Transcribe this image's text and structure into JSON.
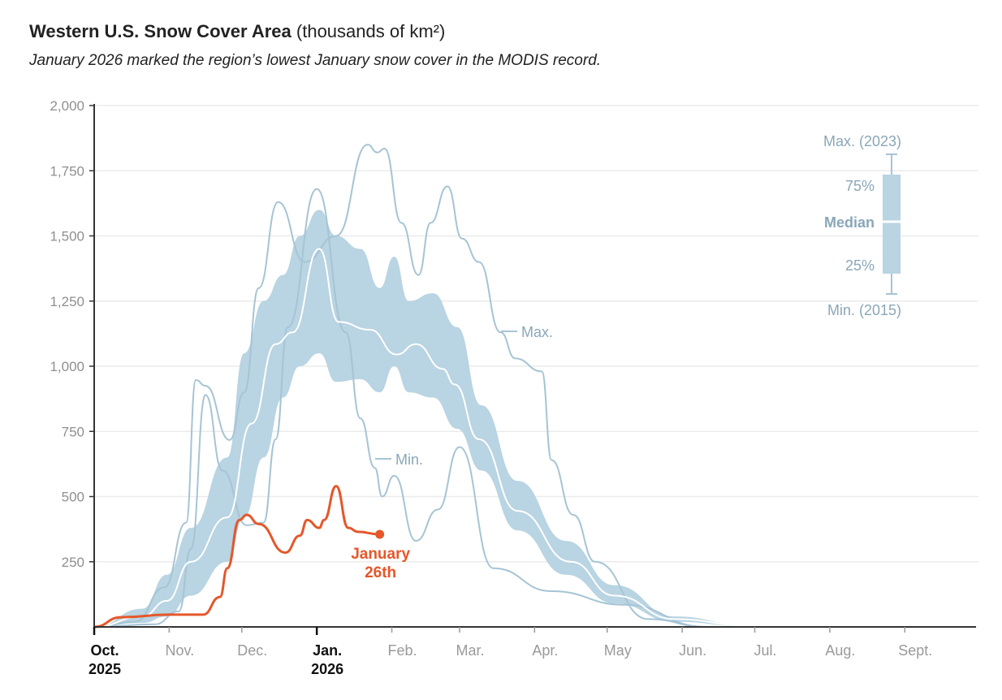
{
  "title": {
    "bold": "Western U.S. Snow Cover Area",
    "units": "(thousands of km²)"
  },
  "subtitle": "January 2026 marked the region’s lowest January snow cover in the MODIS record.",
  "colors": {
    "band": "#b9d4e2",
    "line": "#a6c4d4",
    "median": "#ffffff",
    "current": "#e5572a",
    "label": "#8aa7b8"
  },
  "chart_data": {
    "type": "area",
    "title": "Western U.S. Snow Cover Area (thousands of km²)",
    "xlabel": "",
    "ylabel": "",
    "x_unit": "days since Oct. 1",
    "ylim": [
      0,
      2000
    ],
    "xlim": [
      0,
      365
    ],
    "y_ticks": [
      250,
      500,
      750,
      "1,000",
      "1,250",
      "1,500",
      "1,750",
      "2,000"
    ],
    "y_tick_values": [
      250,
      500,
      750,
      1000,
      1250,
      1500,
      1750,
      2000
    ],
    "x_ticks": [
      {
        "day": 0,
        "label": "Oct.",
        "sub": "2025",
        "bold": true
      },
      {
        "day": 31,
        "label": "Nov."
      },
      {
        "day": 61,
        "label": "Dec."
      },
      {
        "day": 92,
        "label": "Jan.",
        "sub": "2026",
        "bold": true
      },
      {
        "day": 123,
        "label": "Feb."
      },
      {
        "day": 151,
        "label": "Mar."
      },
      {
        "day": 182,
        "label": "Apr."
      },
      {
        "day": 212,
        "label": "May"
      },
      {
        "day": 243,
        "label": "Jun."
      },
      {
        "day": 273,
        "label": "Jul."
      },
      {
        "day": 304,
        "label": "Aug."
      },
      {
        "day": 335,
        "label": "Sept."
      }
    ],
    "grid": true,
    "series": [
      {
        "name": "75th percentile",
        "points": [
          [
            0,
            0
          ],
          [
            20,
            70
          ],
          [
            30,
            200
          ],
          [
            40,
            380
          ],
          [
            55,
            650
          ],
          [
            62,
            1050
          ],
          [
            70,
            1250
          ],
          [
            78,
            1350
          ],
          [
            85,
            1500
          ],
          [
            93,
            1600
          ],
          [
            100,
            1500
          ],
          [
            110,
            1450
          ],
          [
            118,
            1300
          ],
          [
            124,
            1420
          ],
          [
            130,
            1250
          ],
          [
            140,
            1280
          ],
          [
            150,
            1150
          ],
          [
            160,
            850
          ],
          [
            175,
            560
          ],
          [
            195,
            330
          ],
          [
            215,
            160
          ],
          [
            240,
            40
          ],
          [
            270,
            5
          ],
          [
            300,
            0
          ],
          [
            365,
            0
          ]
        ]
      },
      {
        "name": "25th percentile",
        "points": [
          [
            0,
            0
          ],
          [
            20,
            15
          ],
          [
            30,
            40
          ],
          [
            40,
            120
          ],
          [
            55,
            250
          ],
          [
            62,
            420
          ],
          [
            70,
            650
          ],
          [
            78,
            880
          ],
          [
            85,
            1000
          ],
          [
            93,
            1050
          ],
          [
            100,
            940
          ],
          [
            110,
            950
          ],
          [
            118,
            900
          ],
          [
            124,
            1000
          ],
          [
            130,
            900
          ],
          [
            140,
            880
          ],
          [
            150,
            760
          ],
          [
            160,
            600
          ],
          [
            175,
            370
          ],
          [
            195,
            200
          ],
          [
            215,
            90
          ],
          [
            240,
            20
          ],
          [
            270,
            2
          ],
          [
            300,
            0
          ],
          [
            365,
            0
          ]
        ]
      },
      {
        "name": "Median",
        "points": [
          [
            0,
            0
          ],
          [
            20,
            40
          ],
          [
            30,
            100
          ],
          [
            40,
            250
          ],
          [
            55,
            420
          ],
          [
            65,
            780
          ],
          [
            75,
            1085
          ],
          [
            82,
            1130
          ],
          [
            93,
            1450
          ],
          [
            101,
            1170
          ],
          [
            114,
            1140
          ],
          [
            125,
            1045
          ],
          [
            133,
            1085
          ],
          [
            144,
            990
          ],
          [
            149,
            930
          ],
          [
            159,
            720
          ],
          [
            175,
            445
          ],
          [
            197,
            250
          ],
          [
            215,
            120
          ],
          [
            240,
            30
          ],
          [
            270,
            5
          ],
          [
            300,
            0
          ],
          [
            365,
            0
          ]
        ]
      },
      {
        "name": "Max. (2023)",
        "points": [
          [
            0,
            0
          ],
          [
            17,
            20
          ],
          [
            29,
            152
          ],
          [
            38,
            400
          ],
          [
            42,
            947
          ],
          [
            46,
            925
          ],
          [
            56,
            717
          ],
          [
            62,
            900
          ],
          [
            68,
            1300
          ],
          [
            76,
            1630
          ],
          [
            87,
            1400
          ],
          [
            100,
            1500
          ],
          [
            113,
            1850
          ],
          [
            117,
            1820
          ],
          [
            120,
            1835
          ],
          [
            127,
            1550
          ],
          [
            134,
            1350
          ],
          [
            139,
            1550
          ],
          [
            146,
            1690
          ],
          [
            152,
            1490
          ],
          [
            159,
            1400
          ],
          [
            168,
            1130
          ],
          [
            174,
            1030
          ],
          [
            185,
            980
          ],
          [
            189,
            640
          ],
          [
            198,
            430
          ],
          [
            207,
            250
          ],
          [
            229,
            30
          ],
          [
            253,
            0
          ],
          [
            365,
            0
          ]
        ]
      },
      {
        "name": "Min. (2015)",
        "points": [
          [
            0,
            0
          ],
          [
            25,
            10
          ],
          [
            35,
            60
          ],
          [
            40,
            300
          ],
          [
            46,
            890
          ],
          [
            53,
            600
          ],
          [
            63,
            390
          ],
          [
            70,
            400
          ],
          [
            75,
            720
          ],
          [
            80,
            1150
          ],
          [
            92,
            1680
          ],
          [
            104,
            1130
          ],
          [
            110,
            800
          ],
          [
            116,
            610
          ],
          [
            119,
            500
          ],
          [
            124,
            580
          ],
          [
            133,
            330
          ],
          [
            142,
            450
          ],
          [
            151,
            690
          ],
          [
            165,
            225
          ],
          [
            189,
            137
          ],
          [
            219,
            85
          ],
          [
            253,
            0
          ],
          [
            365,
            0
          ]
        ]
      },
      {
        "name": "2025–2026",
        "points": [
          [
            0,
            0
          ],
          [
            11,
            37
          ],
          [
            31,
            47
          ],
          [
            45,
            47
          ],
          [
            52,
            115
          ],
          [
            55,
            225
          ],
          [
            60,
            410
          ],
          [
            63,
            430
          ],
          [
            68,
            395
          ],
          [
            79,
            285
          ],
          [
            85,
            350
          ],
          [
            88,
            410
          ],
          [
            93,
            380
          ],
          [
            95,
            410
          ],
          [
            100,
            540
          ],
          [
            105,
            380
          ],
          [
            109,
            365
          ],
          [
            118,
            355
          ]
        ]
      }
    ],
    "annotations": {
      "max": "Max.",
      "min": "Min.",
      "current": [
        "January",
        "26th"
      ]
    },
    "legend": {
      "placement": "top-right",
      "max": "Max. (2023)",
      "q75": "75%",
      "median": "Median",
      "q25": "25%",
      "min": "Min. (2015)"
    }
  }
}
